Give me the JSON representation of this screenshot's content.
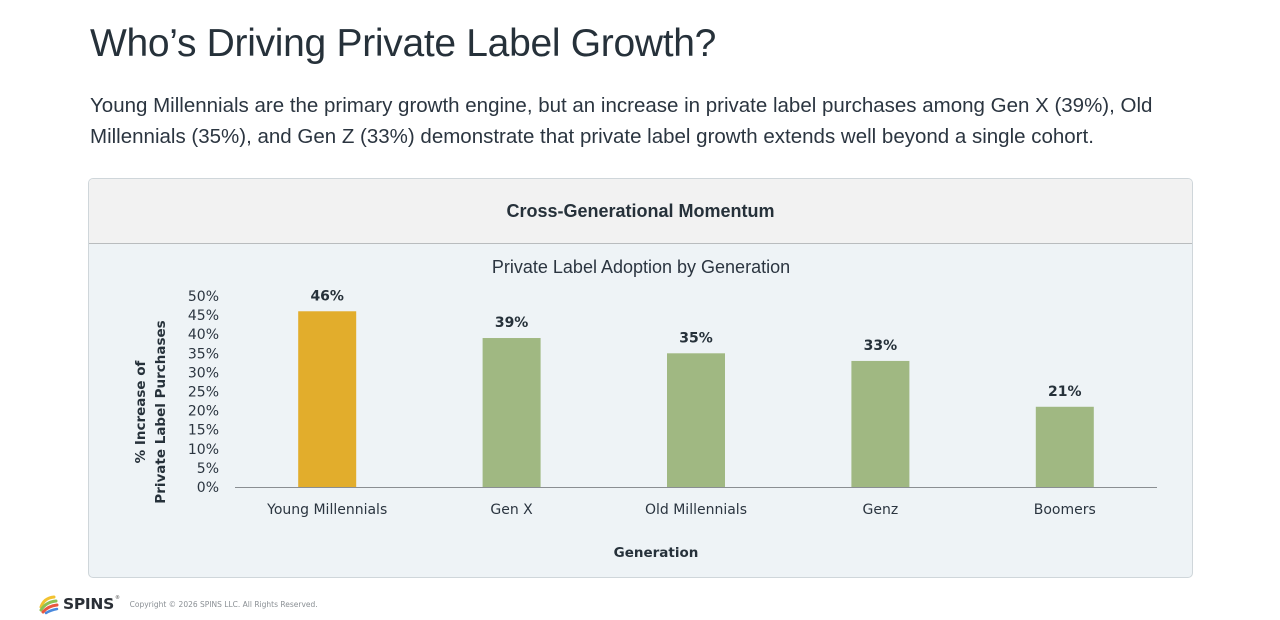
{
  "page": {
    "title": "Who’s Driving Private Label Growth?",
    "subtitle": "Young Millennials are the primary growth engine, but an increase in private label purchases among Gen X (39%), Old Millennials (35%), and Gen Z (33%) demonstrate that private label growth extends well beyond a single cohort."
  },
  "card": {
    "header": "Cross-Generational Momentum"
  },
  "chart_data": {
    "type": "bar",
    "title": "Private Label Adoption by Generation",
    "xlabel": "Generation",
    "ylabel_lines": [
      "% Increase of",
      "Private Label Purchases"
    ],
    "categories": [
      "Young Millennials",
      "Gen X",
      "Old Millennials",
      "Genz",
      "Boomers"
    ],
    "values": [
      46,
      39,
      35,
      33,
      21
    ],
    "data_labels": [
      "46%",
      "39%",
      "35%",
      "33%",
      "21%"
    ],
    "highlight_index": 0,
    "colors": {
      "highlight": "#e2ad2c",
      "default": "#a0b882",
      "axis": "#8a8e92"
    },
    "ylim": [
      0,
      50
    ],
    "yticks": [
      0,
      5,
      10,
      15,
      20,
      25,
      30,
      35,
      40,
      45,
      50
    ],
    "ytick_labels": [
      "0%",
      "5%",
      "10%",
      "15%",
      "20%",
      "25%",
      "30%",
      "35%",
      "40%",
      "45%",
      "50%"
    ],
    "grid": false,
    "legend": "none"
  },
  "footer": {
    "logo": "SPINS",
    "logo_mark": "reg",
    "copyright": "Copyright © 2026 SPINS LLC. All Rights Reserved."
  }
}
